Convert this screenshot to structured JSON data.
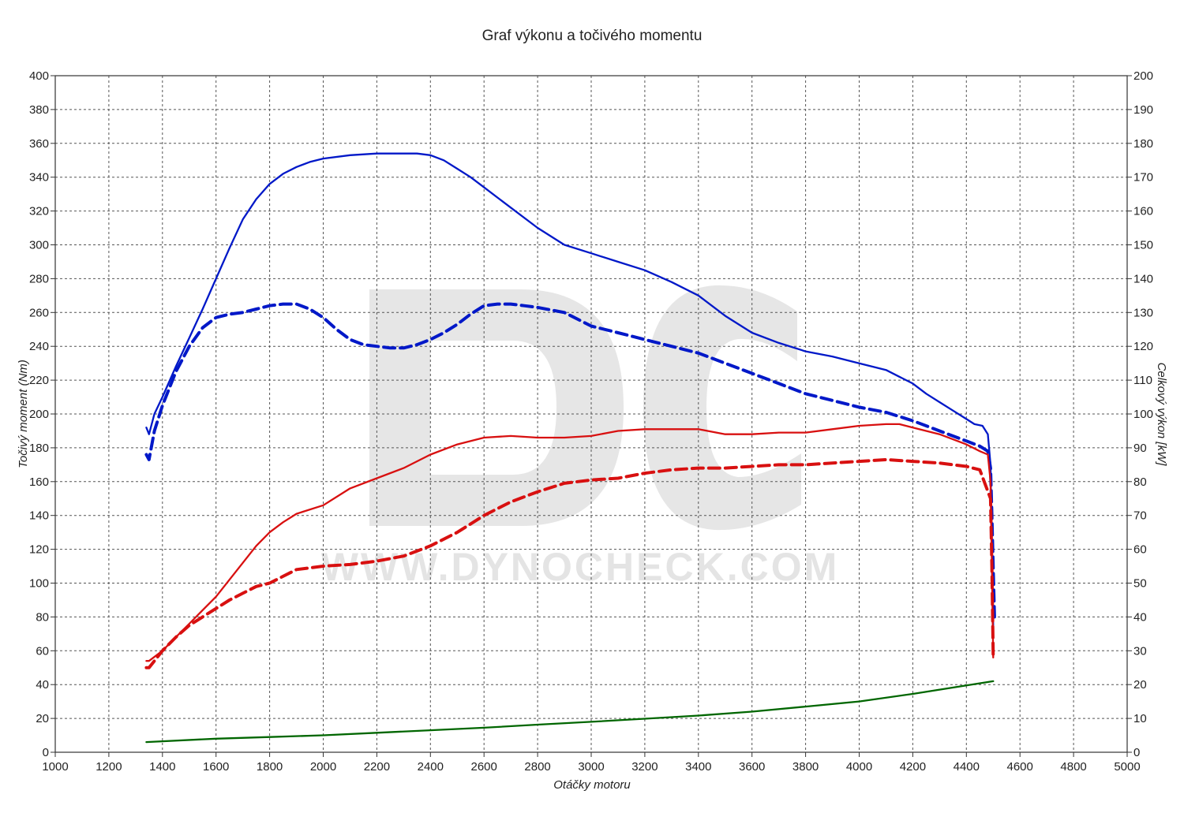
{
  "chart_data": {
    "type": "line",
    "title": "Graf výkonu a točivého momentu",
    "xlabel": "Otáčky motoru",
    "ylabel_left": "Točivý moment (Nm)",
    "ylabel_right": "Celkový výkon [kW]",
    "watermark_text": "WWW.DYNOCHECK.COM",
    "xlim": [
      1000,
      5000
    ],
    "ylim_left": [
      0,
      400
    ],
    "ylim_right": [
      0,
      200
    ],
    "x_ticks": [
      "1000",
      "1200",
      "1400",
      "1600",
      "1800",
      "2000",
      "2200",
      "2400",
      "2600",
      "2800",
      "3000",
      "3200",
      "3400",
      "3600",
      "3800",
      "4000",
      "4200",
      "4400",
      "4600",
      "4800",
      "5000"
    ],
    "y_ticks_left": [
      "0",
      "20",
      "40",
      "60",
      "80",
      "100",
      "120",
      "140",
      "160",
      "180",
      "200",
      "220",
      "240",
      "260",
      "280",
      "300",
      "320",
      "340",
      "360",
      "380",
      "400"
    ],
    "y_ticks_right": [
      "0",
      "10",
      "20",
      "30",
      "40",
      "50",
      "60",
      "70",
      "80",
      "90",
      "100",
      "110",
      "120",
      "130",
      "140",
      "150",
      "160",
      "170",
      "180",
      "190",
      "200"
    ],
    "grid": true,
    "series": [
      {
        "axis": "left",
        "color": "#0018c8",
        "style": "solid",
        "points": [
          [
            1340,
            192
          ],
          [
            1350,
            188
          ],
          [
            1370,
            200
          ],
          [
            1400,
            210
          ],
          [
            1450,
            228
          ],
          [
            1500,
            245
          ],
          [
            1550,
            262
          ],
          [
            1600,
            280
          ],
          [
            1650,
            298
          ],
          [
            1700,
            315
          ],
          [
            1750,
            327
          ],
          [
            1800,
            336
          ],
          [
            1850,
            342
          ],
          [
            1900,
            346
          ],
          [
            1950,
            349
          ],
          [
            2000,
            351
          ],
          [
            2100,
            353
          ],
          [
            2200,
            354
          ],
          [
            2300,
            354
          ],
          [
            2350,
            354
          ],
          [
            2400,
            353
          ],
          [
            2450,
            350
          ],
          [
            2500,
            345
          ],
          [
            2550,
            340
          ],
          [
            2600,
            334
          ],
          [
            2700,
            322
          ],
          [
            2800,
            310
          ],
          [
            2900,
            300
          ],
          [
            3000,
            295
          ],
          [
            3100,
            290
          ],
          [
            3200,
            285
          ],
          [
            3300,
            278
          ],
          [
            3400,
            270
          ],
          [
            3500,
            258
          ],
          [
            3600,
            248
          ],
          [
            3700,
            242
          ],
          [
            3800,
            237
          ],
          [
            3900,
            234
          ],
          [
            4000,
            230
          ],
          [
            4100,
            226
          ],
          [
            4150,
            222
          ],
          [
            4200,
            218
          ],
          [
            4250,
            212
          ],
          [
            4300,
            207
          ],
          [
            4350,
            202
          ],
          [
            4400,
            197
          ],
          [
            4430,
            194
          ],
          [
            4460,
            193
          ],
          [
            4480,
            188
          ],
          [
            4490,
            170
          ],
          [
            4495,
            120
          ],
          [
            4500,
            75
          ]
        ]
      },
      {
        "axis": "left",
        "color": "#0018c8",
        "style": "dashed",
        "points": [
          [
            1340,
            176
          ],
          [
            1350,
            173
          ],
          [
            1370,
            190
          ],
          [
            1400,
            205
          ],
          [
            1450,
            225
          ],
          [
            1500,
            240
          ],
          [
            1550,
            251
          ],
          [
            1600,
            257
          ],
          [
            1650,
            259
          ],
          [
            1700,
            260
          ],
          [
            1750,
            262
          ],
          [
            1800,
            264
          ],
          [
            1850,
            265
          ],
          [
            1900,
            265
          ],
          [
            1950,
            262
          ],
          [
            2000,
            257
          ],
          [
            2050,
            250
          ],
          [
            2100,
            244
          ],
          [
            2150,
            241
          ],
          [
            2200,
            240
          ],
          [
            2250,
            239
          ],
          [
            2300,
            239
          ],
          [
            2350,
            241
          ],
          [
            2400,
            244
          ],
          [
            2450,
            248
          ],
          [
            2500,
            253
          ],
          [
            2550,
            259
          ],
          [
            2600,
            264
          ],
          [
            2650,
            265
          ],
          [
            2700,
            265
          ],
          [
            2750,
            264
          ],
          [
            2800,
            263
          ],
          [
            2900,
            260
          ],
          [
            3000,
            252
          ],
          [
            3100,
            248
          ],
          [
            3200,
            244
          ],
          [
            3300,
            240
          ],
          [
            3400,
            236
          ],
          [
            3500,
            230
          ],
          [
            3600,
            224
          ],
          [
            3700,
            218
          ],
          [
            3800,
            212
          ],
          [
            3900,
            208
          ],
          [
            4000,
            204
          ],
          [
            4100,
            201
          ],
          [
            4200,
            196
          ],
          [
            4300,
            190
          ],
          [
            4400,
            184
          ],
          [
            4450,
            181
          ],
          [
            4480,
            178
          ],
          [
            4490,
            168
          ],
          [
            4495,
            140
          ],
          [
            4500,
            108
          ],
          [
            4505,
            80
          ]
        ]
      },
      {
        "axis": "right",
        "color": "#d81010",
        "style": "solid",
        "points": [
          [
            1340,
            27
          ],
          [
            1350,
            27
          ],
          [
            1400,
            30
          ],
          [
            1450,
            34
          ],
          [
            1500,
            38
          ],
          [
            1550,
            42
          ],
          [
            1600,
            46
          ],
          [
            1650,
            51
          ],
          [
            1700,
            56
          ],
          [
            1750,
            61
          ],
          [
            1800,
            65
          ],
          [
            1850,
            68
          ],
          [
            1900,
            70.5
          ],
          [
            2000,
            73
          ],
          [
            2100,
            78
          ],
          [
            2200,
            81
          ],
          [
            2300,
            84
          ],
          [
            2400,
            88
          ],
          [
            2500,
            91
          ],
          [
            2600,
            93
          ],
          [
            2700,
            93.5
          ],
          [
            2800,
            93
          ],
          [
            2900,
            93
          ],
          [
            3000,
            93.5
          ],
          [
            3100,
            95
          ],
          [
            3200,
            95.5
          ],
          [
            3300,
            95.5
          ],
          [
            3400,
            95.5
          ],
          [
            3500,
            94
          ],
          [
            3600,
            94
          ],
          [
            3700,
            94.5
          ],
          [
            3800,
            94.5
          ],
          [
            3900,
            95.5
          ],
          [
            4000,
            96.5
          ],
          [
            4100,
            97
          ],
          [
            4150,
            97
          ],
          [
            4200,
            96
          ],
          [
            4300,
            94
          ],
          [
            4400,
            91
          ],
          [
            4450,
            89
          ],
          [
            4480,
            88
          ],
          [
            4490,
            80
          ],
          [
            4495,
            55
          ],
          [
            4500,
            28
          ]
        ]
      },
      {
        "axis": "right",
        "color": "#d81010",
        "style": "dashed",
        "points": [
          [
            1340,
            25
          ],
          [
            1350,
            25
          ],
          [
            1400,
            30
          ],
          [
            1450,
            34
          ],
          [
            1500,
            37.5
          ],
          [
            1550,
            40
          ],
          [
            1600,
            42.5
          ],
          [
            1650,
            45
          ],
          [
            1700,
            47
          ],
          [
            1750,
            49
          ],
          [
            1800,
            50
          ],
          [
            1850,
            52
          ],
          [
            1900,
            54
          ],
          [
            2000,
            55
          ],
          [
            2100,
            55.5
          ],
          [
            2200,
            56.5
          ],
          [
            2300,
            58
          ],
          [
            2400,
            61
          ],
          [
            2500,
            65
          ],
          [
            2600,
            70
          ],
          [
            2700,
            74
          ],
          [
            2800,
            77
          ],
          [
            2900,
            79.5
          ],
          [
            3000,
            80.5
          ],
          [
            3100,
            81
          ],
          [
            3200,
            82.5
          ],
          [
            3300,
            83.5
          ],
          [
            3400,
            84
          ],
          [
            3500,
            84
          ],
          [
            3600,
            84.5
          ],
          [
            3700,
            85
          ],
          [
            3800,
            85
          ],
          [
            3900,
            85.5
          ],
          [
            4000,
            86
          ],
          [
            4100,
            86.5
          ],
          [
            4200,
            86
          ],
          [
            4300,
            85.5
          ],
          [
            4400,
            84.5
          ],
          [
            4450,
            83.5
          ],
          [
            4490,
            75
          ],
          [
            4495,
            55
          ],
          [
            4500,
            28
          ]
        ]
      },
      {
        "axis": "left",
        "color": "#006600",
        "style": "solid",
        "points": [
          [
            1340,
            6
          ],
          [
            1600,
            8
          ],
          [
            1800,
            9
          ],
          [
            2000,
            10
          ],
          [
            2200,
            11.5
          ],
          [
            2400,
            13
          ],
          [
            2600,
            14.5
          ],
          [
            2800,
            16.3
          ],
          [
            3000,
            18
          ],
          [
            3200,
            19.8
          ],
          [
            3400,
            21.7
          ],
          [
            3600,
            24
          ],
          [
            3800,
            27
          ],
          [
            4000,
            30
          ],
          [
            4200,
            34.5
          ],
          [
            4400,
            39.5
          ],
          [
            4500,
            42
          ]
        ]
      }
    ]
  }
}
